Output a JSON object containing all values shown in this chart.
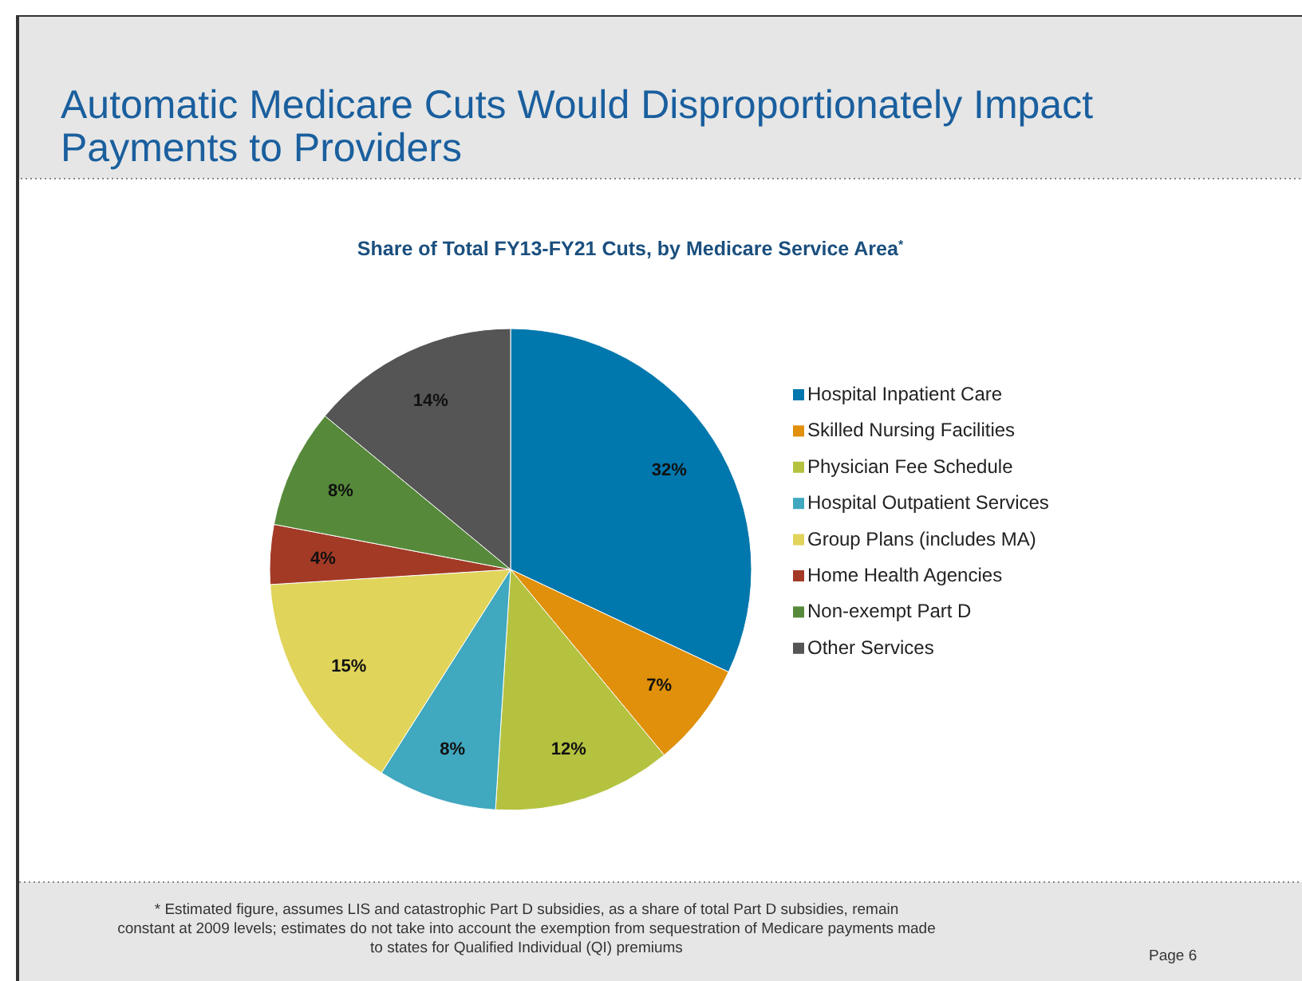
{
  "chart_data": {
    "type": "pie",
    "title": "Automatic Medicare Cuts Would Disproportionately Impact Payments to Providers",
    "subtitle": "Share of Total FY13-FY21 Cuts, by Medicare Service Area$^{*}$",
    "categories": [
      "Hospital Inpatient Care",
      "Skilled Nursing Facilities",
      "Physician Fee Schedule",
      "Hospital Outpatient Services",
      "Group Plans (includes MA)",
      "Home Health Agencies",
      "Non-exempt Part D",
      "Other Services"
    ],
    "values": [
      32,
      7,
      12,
      8,
      15,
      4,
      8,
      14
    ],
    "colors": [
      "#0077ad",
      "#e0900a",
      "#b4c240",
      "#40a8bf",
      "#e0d45a",
      "#a33a26",
      "#568a3a",
      "#555555"
    ],
    "value_labels": [
      "32%",
      "7%",
      "12%",
      "8%",
      "15%",
      "4%",
      "8%",
      "14%"
    ],
    "legend": "right",
    "annotations": [
      "* Estimated figure, assumes LIS and catastrophic Part D subsidies, as a share of total Part D subsidies, remain constant at 2009 levels; estimates do not take into account the exemption from sequestration of Medicare payments made to states for Qualified Individual (QI) premiums",
      "Page 6"
    ]
  }
}
